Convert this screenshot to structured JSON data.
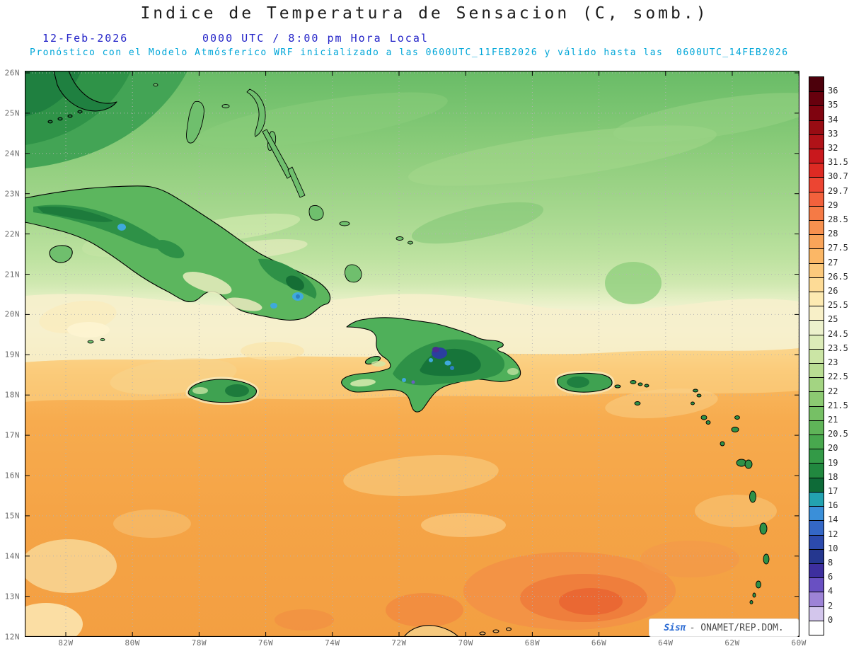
{
  "header": {
    "title": "Indice de Temperatura de Sensacion (C, somb.)",
    "date": "12-Feb-2026",
    "time": "0000 UTC / 8:00 pm Hora Local",
    "forecast": "Pronóstico con el Modelo Atmósferico WRF inicializado a las 0600UTC_11FEB2026 y válido hasta las  0600UTC_14FEB2026"
  },
  "map": {
    "lat_labels": [
      "26N",
      "25N",
      "24N",
      "23N",
      "22N",
      "21N",
      "20N",
      "19N",
      "18N",
      "17N",
      "16N",
      "15N",
      "14N",
      "13N",
      "12N"
    ],
    "lon_labels": [
      "82W",
      "80W",
      "78W",
      "76W",
      "74W",
      "72W",
      "70W",
      "68W",
      "66W",
      "64W",
      "62W",
      "60W"
    ]
  },
  "colorbar": {
    "unit": "C",
    "labels": [
      "36",
      "35",
      "34",
      "33",
      "32",
      "31.5",
      "30.7",
      "29.7",
      "29",
      "28.5",
      "28",
      "27.5",
      "27",
      "26.5",
      "26",
      "25.5",
      "25",
      "24.5",
      "23.5",
      "23",
      "22.5",
      "22",
      "21.5",
      "21",
      "20.5",
      "20",
      "19",
      "18",
      "17",
      "16",
      "14",
      "12",
      "10",
      "8",
      "6",
      "4",
      "2",
      "0"
    ],
    "colors": [
      "#4c000b",
      "#67000d",
      "#7f030f",
      "#980c13",
      "#b01218",
      "#c9181d",
      "#dd2a23",
      "#ec4532",
      "#f2613c",
      "#f57a45",
      "#f7914f",
      "#f9a459",
      "#fbb766",
      "#fcc97c",
      "#fddb96",
      "#fdeab2",
      "#f8f0c8",
      "#ecf1cc",
      "#dcecb8",
      "#cbe5a5",
      "#b9dd93",
      "#a3d482",
      "#8cca72",
      "#76c065",
      "#5fb458",
      "#48a84e",
      "#339a47",
      "#21883f",
      "#0e6b38",
      "#23a2b0",
      "#3a8fd9",
      "#3467c6",
      "#2c4aad",
      "#25378f",
      "#3d2f9e",
      "#6950c2",
      "#9d83d6",
      "#d3c6ec",
      "#ffffff"
    ]
  },
  "watermark": {
    "brand": "Sisπ",
    "org": "- ONAMET/REP.DOM."
  }
}
